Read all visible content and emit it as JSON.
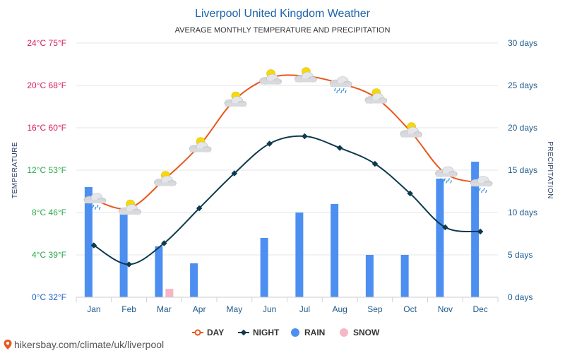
{
  "chart_data": {
    "type": "bar+line",
    "title": "Liverpool United Kingdom Weather",
    "subtitle": "AVERAGE MONTHLY TEMPERATURE AND PRECIPITATION",
    "left_axis_label": "TEMPERATURE",
    "right_axis_label": "PRECIPITATION",
    "categories": [
      "Jan",
      "Feb",
      "Mar",
      "Apr",
      "May",
      "Jun",
      "Jul",
      "Aug",
      "Sep",
      "Oct",
      "Nov",
      "Dec"
    ],
    "temperature_ylim": [
      0,
      24
    ],
    "temperature_ticks": [
      {
        "value": 0,
        "label": "0°C 32°F",
        "color": "#1e64c8"
      },
      {
        "value": 4,
        "label": "4°C 39°F",
        "color": "#2aa84a"
      },
      {
        "value": 8,
        "label": "8°C 46°F",
        "color": "#2aa84a"
      },
      {
        "value": 12,
        "label": "12°C 53°F",
        "color": "#2aa84a"
      },
      {
        "value": 16,
        "label": "16°C 60°F",
        "color": "#d81b60"
      },
      {
        "value": 20,
        "label": "20°C 68°F",
        "color": "#d81b60"
      },
      {
        "value": 24,
        "label": "24°C 75°F",
        "color": "#d81b60"
      }
    ],
    "precipitation_ylim": [
      0,
      30
    ],
    "precipitation_ticks": [
      {
        "value": 0,
        "label": "0 days"
      },
      {
        "value": 5,
        "label": "5 days"
      },
      {
        "value": 10,
        "label": "10 days"
      },
      {
        "value": 15,
        "label": "15 days"
      },
      {
        "value": 20,
        "label": "20 days"
      },
      {
        "value": 25,
        "label": "25 days"
      },
      {
        "value": 30,
        "label": "30 days"
      }
    ],
    "series": [
      {
        "name": "DAY",
        "kind": "line",
        "axis": "temperature",
        "color": "#e8571c",
        "values": [
          9.2,
          8.4,
          11.1,
          14.3,
          18.6,
          20.7,
          20.9,
          20.2,
          18.9,
          15.7,
          11.7,
          10.8
        ]
      },
      {
        "name": "NIGHT",
        "kind": "line",
        "axis": "temperature",
        "color": "#0d3a4f",
        "values": [
          4.9,
          3.1,
          5.1,
          8.4,
          11.7,
          14.5,
          15.2,
          14.1,
          12.6,
          9.8,
          6.6,
          6.2
        ]
      },
      {
        "name": "RAIN",
        "kind": "bar",
        "axis": "precipitation",
        "color": "#4d8ff0",
        "values": [
          13,
          10,
          6,
          4,
          0,
          7,
          10,
          11,
          5,
          5,
          14,
          16
        ]
      },
      {
        "name": "SNOW",
        "kind": "bar",
        "axis": "precipitation",
        "color": "#f7b6c8",
        "values": [
          0,
          0,
          1,
          0,
          0,
          0,
          0,
          0,
          0,
          0,
          0,
          0
        ]
      }
    ],
    "weather_icons": [
      "cloud-rain",
      "cloud-sun",
      "cloud-sun",
      "cloud-sun",
      "cloud-sun",
      "cloud-sun",
      "cloud-sun",
      "cloud-rain",
      "cloud-sun",
      "cloud-sun",
      "cloud-rain",
      "cloud-rain"
    ],
    "legend": [
      "DAY",
      "NIGHT",
      "RAIN",
      "SNOW"
    ],
    "legend_position": "bottom-center"
  },
  "source": {
    "text": "hikersbay.com/climate/uk/liverpool",
    "icon": "map-pin-icon"
  },
  "colors": {
    "grid": "#e6e6e6",
    "title": "#1e64a8",
    "pin": "#e8571c"
  }
}
